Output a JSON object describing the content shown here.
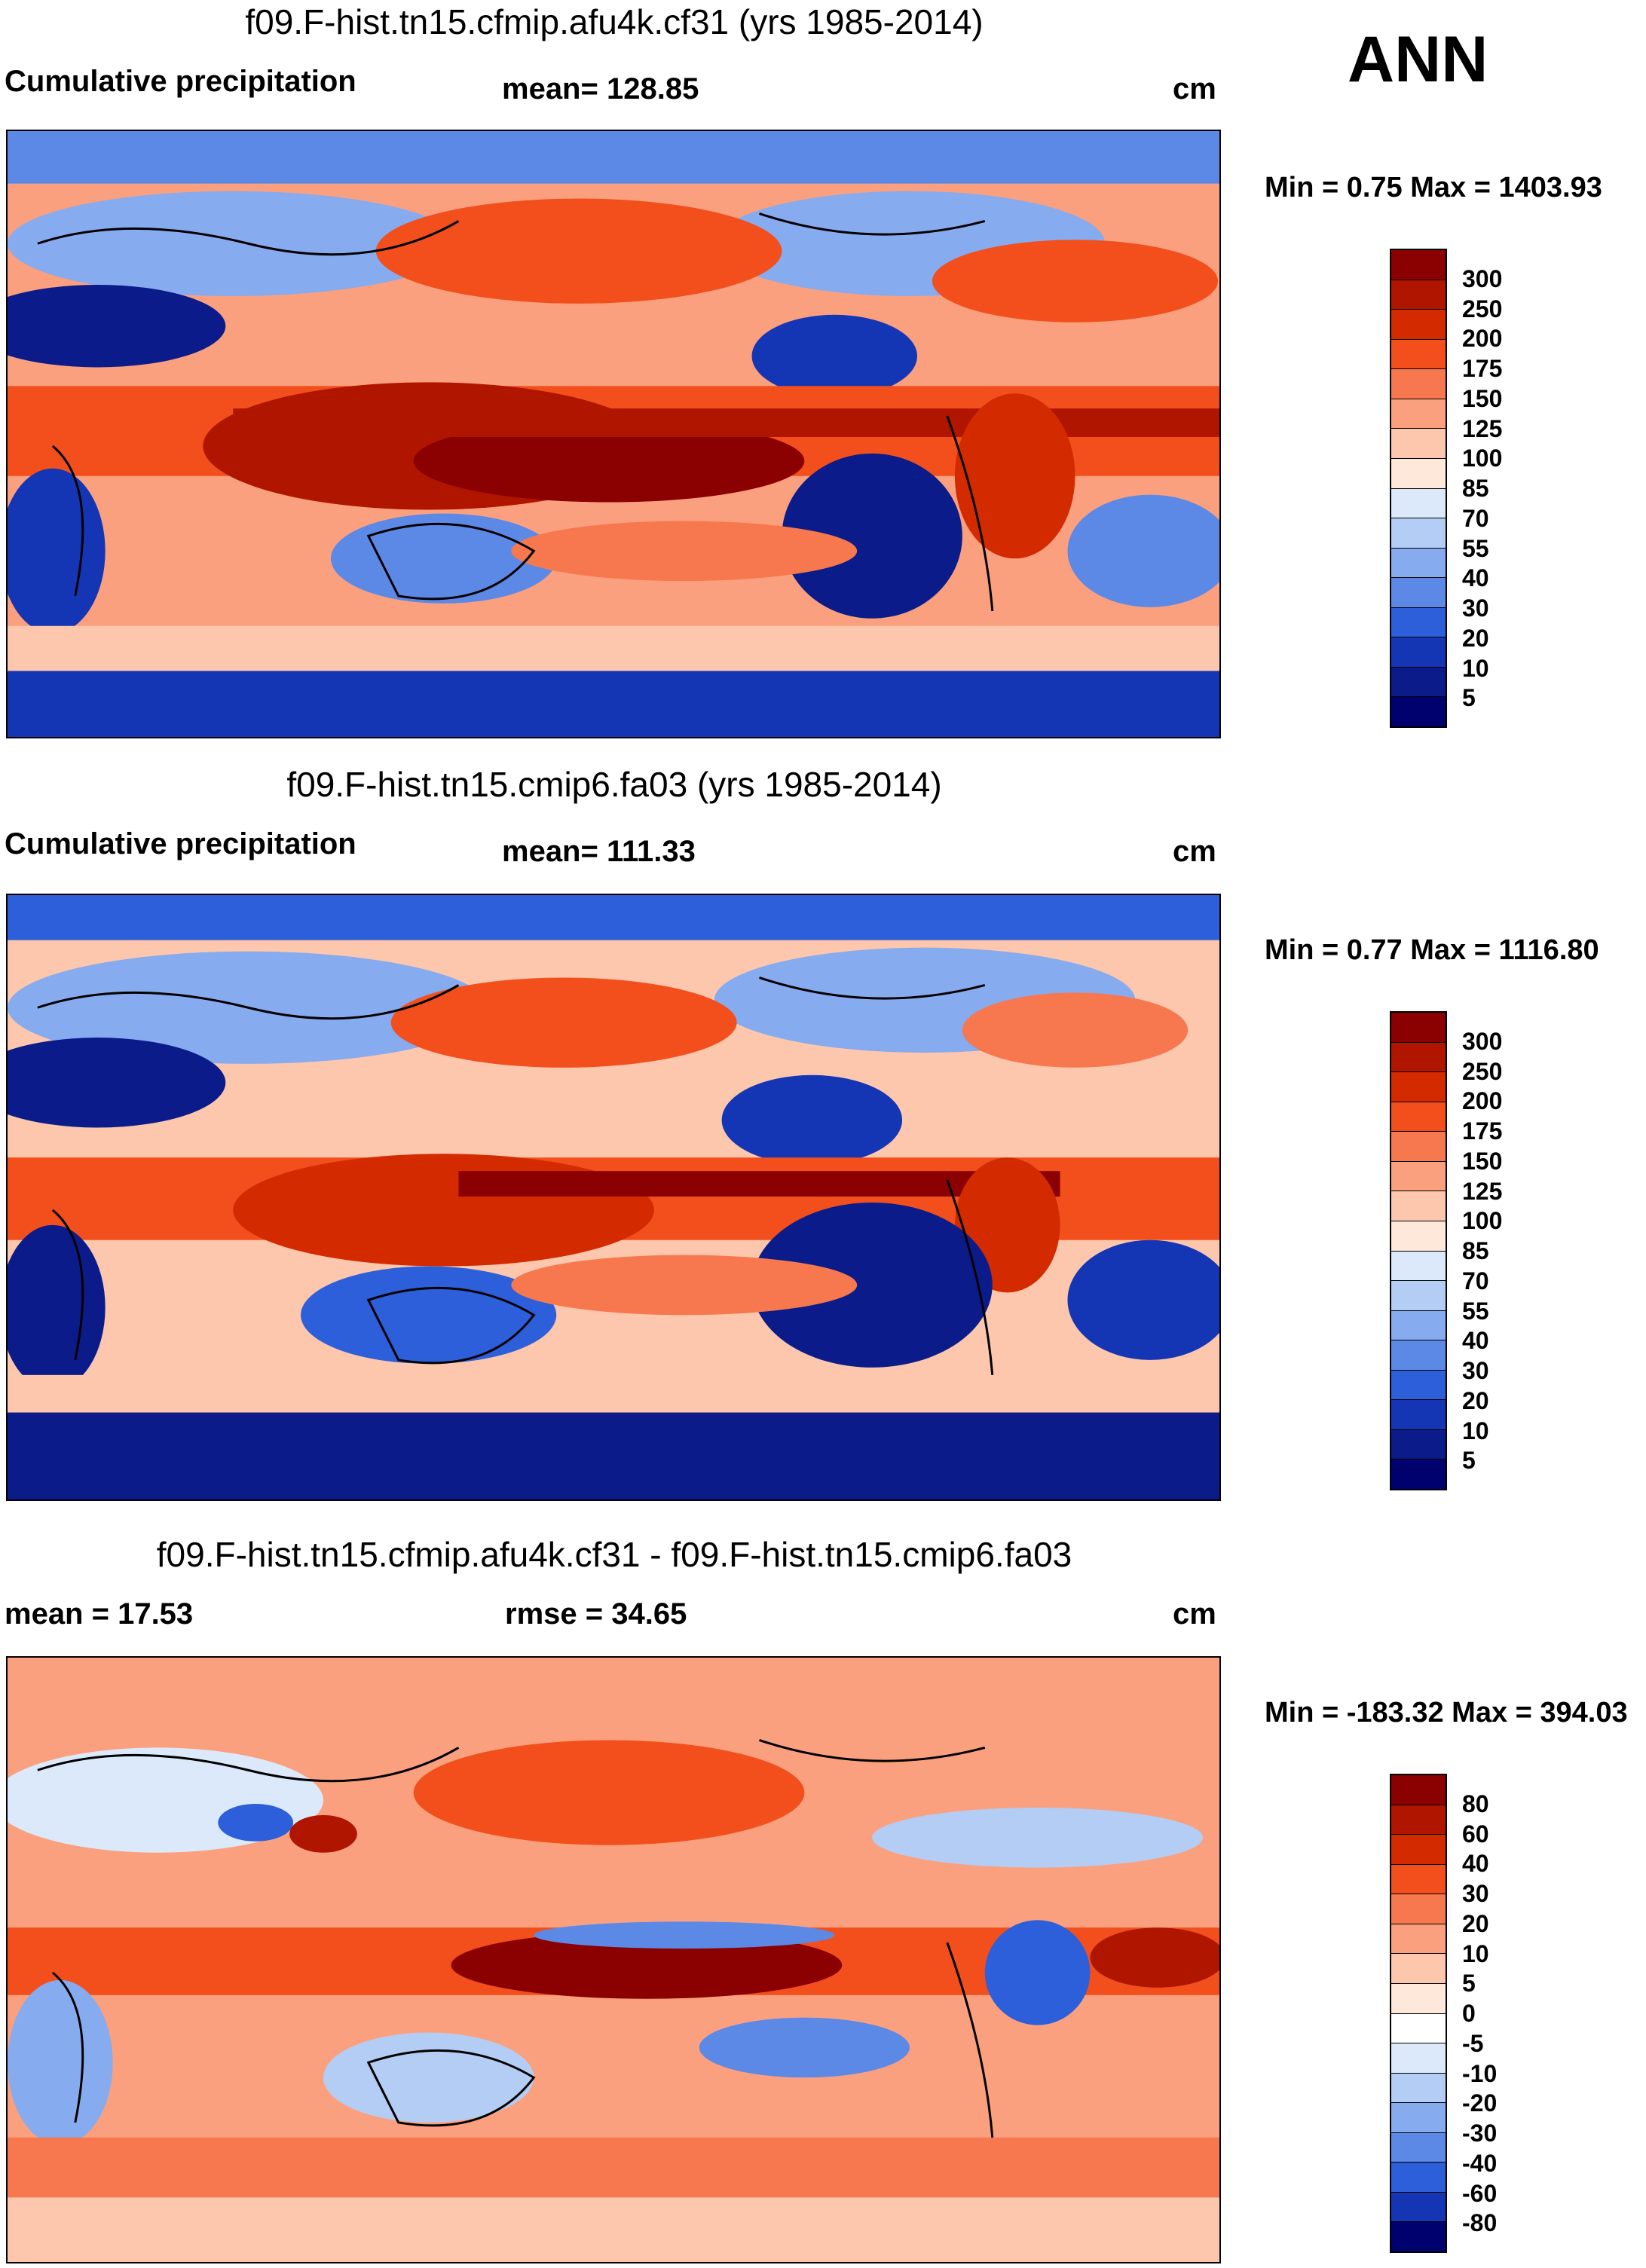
{
  "season": "ANN",
  "chart_data": [
    {
      "type": "heatmap",
      "title": "f09.F-hist.tn15.cfmip.afu4k.cf31 (yrs 1985-2014)",
      "left_label": "Cumulative precipitation",
      "center_label": "mean= 128.85",
      "units": "cm",
      "minmax": "Min =   0.75 Max = 1403.93",
      "levels": [
        "300",
        "250",
        "200",
        "175",
        "150",
        "125",
        "100",
        "85",
        "70",
        "55",
        "40",
        "30",
        "20",
        "10",
        "5"
      ],
      "colors": [
        "#8b0000",
        "#b01500",
        "#d32a00",
        "#f24f1c",
        "#f7784e",
        "#fba07e",
        "#fcc7ad",
        "#fee8da",
        "#dbe9fb",
        "#b3cdf5",
        "#86abef",
        "#5d89e6",
        "#2d5fda",
        "#1536b4",
        "#0b1c8a",
        "#00006e"
      ]
    },
    {
      "type": "heatmap",
      "title": "f09.F-hist.tn15.cmip6.fa03 (yrs 1985-2014)",
      "left_label": "Cumulative precipitation",
      "center_label": "mean= 111.33",
      "units": "cm",
      "minmax": "Min =   0.77 Max = 1116.80",
      "levels": [
        "300",
        "250",
        "200",
        "175",
        "150",
        "125",
        "100",
        "85",
        "70",
        "55",
        "40",
        "30",
        "20",
        "10",
        "5"
      ],
      "colors": [
        "#8b0000",
        "#b01500",
        "#d32a00",
        "#f24f1c",
        "#f7784e",
        "#fba07e",
        "#fcc7ad",
        "#fee8da",
        "#dbe9fb",
        "#b3cdf5",
        "#86abef",
        "#5d89e6",
        "#2d5fda",
        "#1536b4",
        "#0b1c8a",
        "#00006e"
      ]
    },
    {
      "type": "heatmap",
      "title": "f09.F-hist.tn15.cfmip.afu4k.cf31 - f09.F-hist.tn15.cmip6.fa03",
      "left_label": "mean =  17.53",
      "center_label": "rmse =  34.65",
      "units": "cm",
      "minmax": "Min = -183.32 Max = 394.03",
      "levels": [
        "80",
        "60",
        "40",
        "30",
        "20",
        "10",
        "5",
        "0",
        "-5",
        "-10",
        "-20",
        "-30",
        "-40",
        "-60",
        "-80"
      ],
      "colors": [
        "#8b0000",
        "#b01500",
        "#d32a00",
        "#f24f1c",
        "#f7784e",
        "#fba07e",
        "#fcc7ad",
        "#fee8da",
        "#ffffff",
        "#dbe9fb",
        "#b3cdf5",
        "#86abef",
        "#5d89e6",
        "#2d5fda",
        "#1536b4",
        "#00006e"
      ]
    }
  ]
}
